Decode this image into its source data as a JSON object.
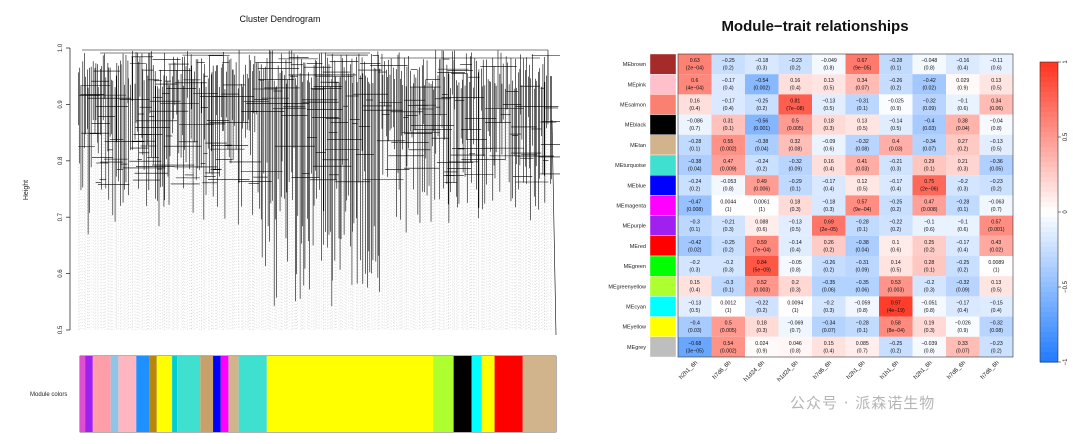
{
  "dendrogram": {
    "title": "Cluster Dendrogram",
    "ylabel": "Height",
    "yticks": [
      "1.0",
      "0.9",
      "0.8",
      "0.7",
      "0.6",
      "0.5"
    ],
    "colorbar_label": "Module colors",
    "colorbar_colors": [
      "#e04fd0",
      "#a020f0",
      "#ff9da8",
      "#8ec4e6",
      "#ffb6c1",
      "#1e90ff",
      "#b8860b",
      "#ffff00",
      "#00ced1",
      "#40e0d0",
      "#c8a06a",
      "#0000ff",
      "#ff00ff",
      "#d2b48c",
      "#40e0d0",
      "#ffff00",
      "#adff2f",
      "#000000",
      "#00ffff",
      "#ffff00",
      "#ff0000",
      "#d2b48c"
    ]
  },
  "heatmap": {
    "title": "Module−trait relationships",
    "row_labels": [
      "MEbrown",
      "MEpink",
      "MEsalmon",
      "MEblack",
      "MEtan",
      "MEturquoise",
      "MEblue",
      "MEmagenta",
      "MEpurple",
      "MEred",
      "MEgreen",
      "MEgreenyellow",
      "MEcyan",
      "MEyellow",
      "MEgrey"
    ],
    "row_colors": [
      "#a52a2a",
      "#ffc0cb",
      "#fa8072",
      "#000000",
      "#d2b48c",
      "#40e0d0",
      "#0000ff",
      "#ff00ff",
      "#a020f0",
      "#ff0000",
      "#00ff00",
      "#adff2f",
      "#00ffff",
      "#ffff00",
      "#bebebe"
    ],
    "col_labels": [
      "h2h1_6h",
      "h7d6_6h",
      "h1d24_6h",
      "h1d24_6h",
      "h7d6_6h",
      "h2h1_6h",
      "h1h1_6h",
      "h2h1_6h",
      "h7d6_6h",
      "h7d6_6h"
    ],
    "cells": [
      [
        [
          "0.63",
          "(2e−04)"
        ],
        [
          "−0.25",
          "(0.2)"
        ],
        [
          "−0.18",
          "(0.3)"
        ],
        [
          "−0.23",
          "(0.2)"
        ],
        [
          "−0.049",
          "(0.8)"
        ],
        [
          "0.67",
          "(9e−05)"
        ],
        [
          "−0.28",
          "(0.1)"
        ],
        [
          "−0.048",
          "(0.8)"
        ],
        [
          "−0.16",
          "(0.4)"
        ],
        [
          "−0.11",
          "(0.6)"
        ]
      ],
      [
        [
          "0.6",
          "(4e−04)"
        ],
        [
          "−0.17",
          "(0.4)"
        ],
        [
          "−0.54",
          "(0.002)"
        ],
        [
          "0.16",
          "(0.4)"
        ],
        [
          "0.13",
          "(0.5)"
        ],
        [
          "0.34",
          "(0.07)"
        ],
        [
          "−0.26",
          "(0.2)"
        ],
        [
          "−0.42",
          "(0.02)"
        ],
        [
          "0.029",
          "(0.9)"
        ],
        [
          "0.13",
          "(0.5)"
        ]
      ],
      [
        [
          "0.16",
          "(0.4)"
        ],
        [
          "−0.17",
          "(0.4)"
        ],
        [
          "−0.25",
          "(0.2)"
        ],
        [
          "0.81",
          "(7e−08)"
        ],
        [
          "−0.13",
          "(0.5)"
        ],
        [
          "−0.31",
          "(0.1)"
        ],
        [
          "−0.025",
          "(0.9)"
        ],
        [
          "−0.32",
          "(0.09)"
        ],
        [
          "−0.1",
          "(0.6)"
        ],
        [
          "0.34",
          "(0.06)"
        ]
      ],
      [
        [
          "−0.086",
          "(0.7)"
        ],
        [
          "0.31",
          "(0.1)"
        ],
        [
          "−0.56",
          "(0.001)"
        ],
        [
          "0.5",
          "(0.005)"
        ],
        [
          "0.18",
          "(0.3)"
        ],
        [
          "0.13",
          "(0.5)"
        ],
        [
          "−0.14",
          "(0.5)"
        ],
        [
          "−0.4",
          "(0.03)"
        ],
        [
          "0.38",
          "(0.04)"
        ],
        [
          "−0.04",
          "(0.8)"
        ]
      ],
      [
        [
          "−0.28",
          "(0.1)"
        ],
        [
          "0.55",
          "(0.002)"
        ],
        [
          "−0.38",
          "(0.04)"
        ],
        [
          "0.32",
          "(0.08)"
        ],
        [
          "−0.09",
          "(0.6)"
        ],
        [
          "−0.32",
          "(0.08)"
        ],
        [
          "0.4",
          "(0.03)"
        ],
        [
          "−0.34",
          "(0.07)"
        ],
        [
          "0.27",
          "(0.2)"
        ],
        [
          "−0.13",
          "(0.5)"
        ]
      ],
      [
        [
          "−0.38",
          "(0.04)"
        ],
        [
          "0.47",
          "(0.009)"
        ],
        [
          "−0.24",
          "(0.2)"
        ],
        [
          "−0.32",
          "(0.09)"
        ],
        [
          "0.16",
          "(0.4)"
        ],
        [
          "0.41",
          "(0.03)"
        ],
        [
          "−0.21",
          "(0.3)"
        ],
        [
          "0.29",
          "(0.1)"
        ],
        [
          "0.21",
          "(0.3)"
        ],
        [
          "−0.36",
          "(0.05)"
        ]
      ],
      [
        [
          "−0.24",
          "(0.2)"
        ],
        [
          "−0.053",
          "(0.8)"
        ],
        [
          "0.49",
          "(0.006)"
        ],
        [
          "−0.29",
          "(0.1)"
        ],
        [
          "−0.17",
          "(0.4)"
        ],
        [
          "0.12",
          "(0.5)"
        ],
        [
          "−0.17",
          "(0.4)"
        ],
        [
          "0.75",
          "(2e−06)"
        ],
        [
          "−0.2",
          "(0.3)"
        ],
        [
          "−0.23",
          "(0.2)"
        ]
      ],
      [
        [
          "−0.47",
          "(0.008)"
        ],
        [
          "0.0044",
          "(1)"
        ],
        [
          "0.0061",
          "(1)"
        ],
        [
          "0.18",
          "(0.3)"
        ],
        [
          "−0.18",
          "(0.3)"
        ],
        [
          "0.57",
          "(9e−04)"
        ],
        [
          "−0.25",
          "(0.2)"
        ],
        [
          "0.47",
          "(0.008)"
        ],
        [
          "−0.28",
          "(0.1)"
        ],
        [
          "−0.063",
          "(0.7)"
        ]
      ],
      [
        [
          "−0.3",
          "(0.1)"
        ],
        [
          "−0.21",
          "(0.3)"
        ],
        [
          "0.088",
          "(0.6)"
        ],
        [
          "−0.13",
          "(0.5)"
        ],
        [
          "0.69",
          "(2e−05)"
        ],
        [
          "−0.28",
          "(0.1)"
        ],
        [
          "−0.22",
          "(0.2)"
        ],
        [
          "−0.1",
          "(0.6)"
        ],
        [
          "−0.1",
          "(0.6)"
        ],
        [
          "0.57",
          "(0.001)"
        ]
      ],
      [
        [
          "−0.42",
          "(0.02)"
        ],
        [
          "−0.25",
          "(0.2)"
        ],
        [
          "0.59",
          "(7e−04)"
        ],
        [
          "−0.14",
          "(0.4)"
        ],
        [
          "0.26",
          "(0.2)"
        ],
        [
          "−0.38",
          "(0.04)"
        ],
        [
          "0.1",
          "(0.6)"
        ],
        [
          "0.25",
          "(0.2)"
        ],
        [
          "−0.17",
          "(0.4)"
        ],
        [
          "0.43",
          "(0.02)"
        ]
      ],
      [
        [
          "−0.2",
          "(0.3)"
        ],
        [
          "−0.2",
          "(0.3)"
        ],
        [
          "0.84",
          "(5e−09)"
        ],
        [
          "−0.05",
          "(0.8)"
        ],
        [
          "−0.26",
          "(0.2)"
        ],
        [
          "−0.31",
          "(0.09)"
        ],
        [
          "0.14",
          "(0.5)"
        ],
        [
          "0.28",
          "(0.1)"
        ],
        [
          "−0.25",
          "(0.2)"
        ],
        [
          "0.0089",
          "(1)"
        ]
      ],
      [
        [
          "0.15",
          "(0.4)"
        ],
        [
          "−0.3",
          "(0.1)"
        ],
        [
          "0.52",
          "(0.003)"
        ],
        [
          "0.2",
          "(0.3)"
        ],
        [
          "−0.35",
          "(0.06)"
        ],
        [
          "−0.35",
          "(0.06)"
        ],
        [
          "0.53",
          "(0.003)"
        ],
        [
          "−0.2",
          "(0.3)"
        ],
        [
          "−0.32",
          "(0.09)"
        ],
        [
          "0.13",
          "(0.5)"
        ]
      ],
      [
        [
          "−0.13",
          "(0.5)"
        ],
        [
          "0.0012",
          "(1)"
        ],
        [
          "−0.22",
          "(0.2)"
        ],
        [
          "0.0094",
          "(1)"
        ],
        [
          "−0.2",
          "(0.3)"
        ],
        [
          "−0.059",
          "(0.8)"
        ],
        [
          "0.97",
          "(4e−19)"
        ],
        [
          "−0.051",
          "(0.8)"
        ],
        [
          "−0.17",
          "(0.4)"
        ],
        [
          "−0.15",
          "(0.4)"
        ]
      ],
      [
        [
          "−0.4",
          "(0.03)"
        ],
        [
          "0.5",
          "(0.005)"
        ],
        [
          "0.18",
          "(0.3)"
        ],
        [
          "−0.069",
          "(0.7)"
        ],
        [
          "−0.34",
          "(0.07)"
        ],
        [
          "−0.28",
          "(0.1)"
        ],
        [
          "0.58",
          "(8e−04)"
        ],
        [
          "0.19",
          "(0.3)"
        ],
        [
          "−0.026",
          "(0.9)"
        ],
        [
          "−0.32",
          "(0.08)"
        ]
      ],
      [
        [
          "−0.68",
          "(3e−05)"
        ],
        [
          "0.54",
          "(0.002)"
        ],
        [
          "0.024",
          "(0.9)"
        ],
        [
          "0.046",
          "(0.8)"
        ],
        [
          "0.15",
          "(0.4)"
        ],
        [
          "0.085",
          "(0.7)"
        ],
        [
          "−0.25",
          "(0.2)"
        ],
        [
          "−0.039",
          "(0.8)"
        ],
        [
          "0.33",
          "(0.07)"
        ],
        [
          "−0.23",
          "(0.2)"
        ]
      ]
    ],
    "legend_ticks": [
      "1",
      "0.5",
      "0",
      "−0.5",
      "−1"
    ]
  },
  "watermark": "公众号 · 派森诺生物"
}
